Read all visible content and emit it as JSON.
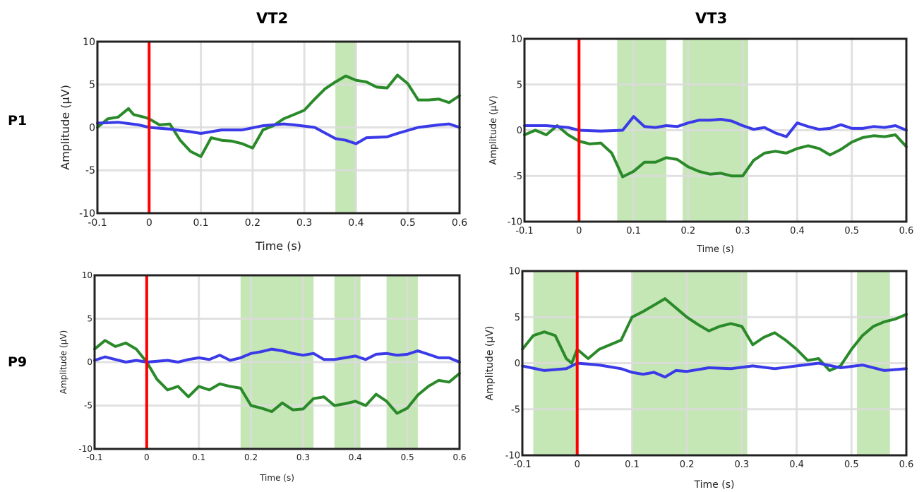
{
  "columns": [
    "VT2",
    "VT3"
  ],
  "rows": [
    "P1",
    "P9"
  ],
  "colors": {
    "green": "#2a8a2a",
    "blue": "#3a3ae8",
    "onset": "#ff0000",
    "shade": "#c5e6b5",
    "grid": "#dcdcdc"
  },
  "chart_data": [
    {
      "type": "line",
      "panel": "P1-VT2",
      "xlabel": "Time (s)",
      "ylabel": "Amplitude (µV)",
      "xlim": [
        -0.1,
        0.6
      ],
      "ylim": [
        -10,
        10
      ],
      "xticks": [
        -0.1,
        0,
        0.1,
        0.2,
        0.3,
        0.4,
        0.5,
        0.6
      ],
      "yticks": [
        -10,
        -5,
        0,
        5,
        10
      ],
      "xtick_labels": [
        "-0.1",
        "0",
        "0.1",
        "0.2",
        "0.3",
        "0.4",
        "0.5",
        "0.6"
      ],
      "ytick_labels": [
        "-10",
        "-5",
        "0",
        "5",
        "10"
      ],
      "grid": true,
      "onset": 0,
      "shaded": [
        [
          0.36,
          0.4
        ]
      ],
      "series": [
        {
          "color": "green",
          "x": [
            -0.1,
            -0.08,
            -0.06,
            -0.04,
            -0.03,
            -0.01,
            0,
            0.02,
            0.04,
            0.06,
            0.08,
            0.1,
            0.12,
            0.14,
            0.16,
            0.18,
            0.2,
            0.22,
            0.24,
            0.26,
            0.28,
            0.3,
            0.32,
            0.34,
            0.36,
            0.38,
            0.4,
            0.42,
            0.44,
            0.46,
            0.48,
            0.5,
            0.52,
            0.54,
            0.56,
            0.58,
            0.6
          ],
          "y": [
            0,
            1,
            1.2,
            2.2,
            1.5,
            1.2,
            1,
            0.3,
            0.4,
            -1.5,
            -2.8,
            -3.4,
            -1.2,
            -1.5,
            -1.6,
            -1.9,
            -2.4,
            -0.3,
            0.2,
            1,
            1.5,
            2,
            3.3,
            4.5,
            5.3,
            6,
            5.5,
            5.3,
            4.7,
            4.6,
            6.1,
            5.1,
            3.2,
            3.2,
            3.3,
            2.9,
            3.7
          ]
        },
        {
          "color": "blue",
          "x": [
            -0.1,
            -0.06,
            -0.02,
            0,
            0.04,
            0.08,
            0.1,
            0.14,
            0.18,
            0.22,
            0.26,
            0.28,
            0.32,
            0.36,
            0.38,
            0.4,
            0.42,
            0.46,
            0.48,
            0.52,
            0.56,
            0.58,
            0.6
          ],
          "y": [
            0.5,
            0.6,
            0.3,
            0,
            -0.2,
            -0.5,
            -0.7,
            -0.3,
            -0.3,
            0.2,
            0.4,
            0.3,
            0,
            -1.3,
            -1.5,
            -1.9,
            -1.2,
            -1.1,
            -0.7,
            0,
            0.3,
            0.4,
            0
          ]
        }
      ]
    },
    {
      "type": "line",
      "panel": "P1-VT3",
      "xlabel": "Time (s)",
      "ylabel": "Amplitude (µV)",
      "xlim": [
        -0.1,
        0.6
      ],
      "ylim": [
        -10,
        10
      ],
      "xticks": [
        -0.1,
        0,
        0.1,
        0.2,
        0.3,
        0.4,
        0.5,
        0.6
      ],
      "yticks": [
        -10,
        -5,
        0,
        5,
        10
      ],
      "xtick_labels": [
        "-0.1",
        "0",
        "0.1",
        "0.2",
        "0.3",
        "0.4",
        "0.5",
        "0.6"
      ],
      "ytick_labels": [
        "-10",
        "-5",
        "0",
        "5",
        "10"
      ],
      "grid": true,
      "onset": 0,
      "shaded": [
        [
          0.07,
          0.16
        ],
        [
          0.19,
          0.31
        ]
      ],
      "series": [
        {
          "color": "green",
          "x": [
            -0.1,
            -0.08,
            -0.06,
            -0.04,
            -0.02,
            0,
            0.02,
            0.04,
            0.06,
            0.08,
            0.1,
            0.12,
            0.14,
            0.16,
            0.18,
            0.2,
            0.22,
            0.24,
            0.26,
            0.28,
            0.3,
            0.32,
            0.34,
            0.36,
            0.38,
            0.4,
            0.42,
            0.44,
            0.46,
            0.48,
            0.5,
            0.52,
            0.54,
            0.56,
            0.58,
            0.6
          ],
          "y": [
            -0.5,
            0,
            -0.5,
            0.5,
            -0.5,
            -1.2,
            -1.5,
            -1.4,
            -2.5,
            -5.1,
            -4.5,
            -3.5,
            -3.5,
            -3,
            -3.2,
            -4,
            -4.5,
            -4.8,
            -4.7,
            -5,
            -5,
            -3.3,
            -2.5,
            -2.3,
            -2.5,
            -2,
            -1.7,
            -2,
            -2.7,
            -2.1,
            -1.3,
            -0.8,
            -0.6,
            -0.7,
            -0.5,
            -1.8
          ]
        },
        {
          "color": "blue",
          "x": [
            -0.1,
            -0.06,
            -0.02,
            0,
            0.04,
            0.08,
            0.1,
            0.12,
            0.14,
            0.16,
            0.18,
            0.2,
            0.22,
            0.24,
            0.26,
            0.28,
            0.3,
            0.32,
            0.34,
            0.36,
            0.38,
            0.4,
            0.42,
            0.44,
            0.46,
            0.48,
            0.5,
            0.52,
            0.54,
            0.56,
            0.58,
            0.6
          ],
          "y": [
            0.5,
            0.5,
            0.3,
            0,
            -0.1,
            0,
            1.5,
            0.4,
            0.3,
            0.5,
            0.4,
            0.8,
            1.1,
            1.1,
            1.2,
            1,
            0.5,
            0.1,
            0.3,
            -0.3,
            -0.7,
            0.8,
            0.4,
            0.1,
            0.2,
            0.6,
            0.2,
            0.2,
            0.4,
            0.3,
            0.5,
            0
          ]
        }
      ]
    },
    {
      "type": "line",
      "panel": "P9-VT2",
      "xlabel": "Time (s)",
      "ylabel": "Amplitude (µV)",
      "xlim": [
        -0.1,
        0.6
      ],
      "ylim": [
        -10,
        10
      ],
      "xticks": [
        -0.1,
        0,
        0.1,
        0.2,
        0.3,
        0.4,
        0.5,
        0.6
      ],
      "yticks": [
        -10,
        -5,
        0,
        5,
        10
      ],
      "xtick_labels": [
        "-0.1",
        "0",
        "0.1",
        "0.2",
        "0.3",
        "0.4",
        "0.5",
        "0.6"
      ],
      "ytick_labels": [
        "-10",
        "-5",
        "0",
        "5",
        "10"
      ],
      "grid": true,
      "onset": 0,
      "shaded": [
        [
          0.18,
          0.32
        ],
        [
          0.36,
          0.41
        ],
        [
          0.46,
          0.52
        ]
      ],
      "series": [
        {
          "color": "green",
          "x": [
            -0.1,
            -0.08,
            -0.06,
            -0.04,
            -0.02,
            0,
            0.02,
            0.04,
            0.06,
            0.08,
            0.1,
            0.12,
            0.14,
            0.16,
            0.18,
            0.2,
            0.22,
            0.24,
            0.26,
            0.28,
            0.3,
            0.32,
            0.34,
            0.36,
            0.38,
            0.4,
            0.42,
            0.44,
            0.46,
            0.48,
            0.5,
            0.52,
            0.54,
            0.56,
            0.58,
            0.6
          ],
          "y": [
            1.5,
            2.5,
            1.8,
            2.2,
            1.5,
            0,
            -2,
            -3.2,
            -2.8,
            -4,
            -2.8,
            -3.2,
            -2.5,
            -2.8,
            -3,
            -5,
            -5.3,
            -5.7,
            -4.7,
            -5.5,
            -5.4,
            -4.2,
            -4,
            -5,
            -4.8,
            -4.5,
            -5,
            -3.7,
            -4.5,
            -5.9,
            -5.3,
            -3.8,
            -2.8,
            -2.1,
            -2.3,
            -1.3
          ]
        },
        {
          "color": "blue",
          "x": [
            -0.1,
            -0.08,
            -0.06,
            -0.04,
            -0.02,
            0,
            0.02,
            0.04,
            0.06,
            0.08,
            0.1,
            0.12,
            0.14,
            0.16,
            0.18,
            0.2,
            0.22,
            0.24,
            0.26,
            0.28,
            0.3,
            0.32,
            0.34,
            0.36,
            0.38,
            0.4,
            0.42,
            0.44,
            0.46,
            0.48,
            0.5,
            0.52,
            0.54,
            0.56,
            0.58,
            0.6
          ],
          "y": [
            0.2,
            0.6,
            0.3,
            0,
            0.2,
            0,
            0.1,
            0.2,
            0,
            0.3,
            0.5,
            0.3,
            0.8,
            0.2,
            0.5,
            1,
            1.2,
            1.5,
            1.3,
            1,
            0.8,
            1,
            0.3,
            0.3,
            0.5,
            0.7,
            0.3,
            0.9,
            1,
            0.8,
            0.9,
            1.3,
            0.9,
            0.5,
            0.5,
            0
          ]
        }
      ]
    },
    {
      "type": "line",
      "panel": "P9-VT3",
      "xlabel": "Time (s)",
      "ylabel": "Amplitude (µV)",
      "xlim": [
        -0.1,
        0.6
      ],
      "ylim": [
        -10,
        10
      ],
      "xticks": [
        -0.1,
        0,
        0.1,
        0.2,
        0.3,
        0.4,
        0.5,
        0.6
      ],
      "yticks": [
        -10,
        -5,
        0,
        5,
        10
      ],
      "xtick_labels": [
        "-0.1",
        "0",
        "0.1",
        "0.2",
        "0.3",
        "0.4",
        "0.5",
        "0.6"
      ],
      "ytick_labels": [
        "-10",
        "-5",
        "0",
        "5",
        "10"
      ],
      "grid": true,
      "onset": 0,
      "shaded": [
        [
          -0.08,
          0
        ],
        [
          0.1,
          0.31
        ],
        [
          0.51,
          0.57
        ]
      ],
      "series": [
        {
          "color": "green",
          "x": [
            -0.1,
            -0.08,
            -0.06,
            -0.04,
            -0.02,
            -0.01,
            0,
            0.02,
            0.04,
            0.06,
            0.08,
            0.1,
            0.12,
            0.14,
            0.16,
            0.18,
            0.2,
            0.22,
            0.24,
            0.26,
            0.28,
            0.3,
            0.32,
            0.34,
            0.36,
            0.38,
            0.4,
            0.42,
            0.44,
            0.46,
            0.48,
            0.5,
            0.52,
            0.54,
            0.56,
            0.58,
            0.6
          ],
          "y": [
            1.5,
            3,
            3.4,
            3,
            0.5,
            0,
            1.5,
            0.5,
            1.5,
            2,
            2.5,
            5,
            5.6,
            6.3,
            7,
            6,
            5,
            4.2,
            3.5,
            4,
            4.3,
            4,
            2,
            2.8,
            3.3,
            2.5,
            1.5,
            0.3,
            0.5,
            -0.8,
            -0.3,
            1.5,
            3,
            4,
            4.5,
            4.8,
            5.3
          ]
        },
        {
          "color": "blue",
          "x": [
            -0.1,
            -0.06,
            -0.02,
            0,
            0.04,
            0.08,
            0.1,
            0.12,
            0.14,
            0.16,
            0.18,
            0.2,
            0.24,
            0.28,
            0.32,
            0.36,
            0.4,
            0.44,
            0.48,
            0.52,
            0.56,
            0.6
          ],
          "y": [
            -0.3,
            -0.8,
            -0.6,
            0,
            -0.2,
            -0.6,
            -1,
            -1.2,
            -1,
            -1.5,
            -0.8,
            -0.9,
            -0.5,
            -0.6,
            -0.3,
            -0.6,
            -0.3,
            0,
            -0.5,
            -0.2,
            -0.8,
            -0.6
          ]
        }
      ]
    }
  ]
}
